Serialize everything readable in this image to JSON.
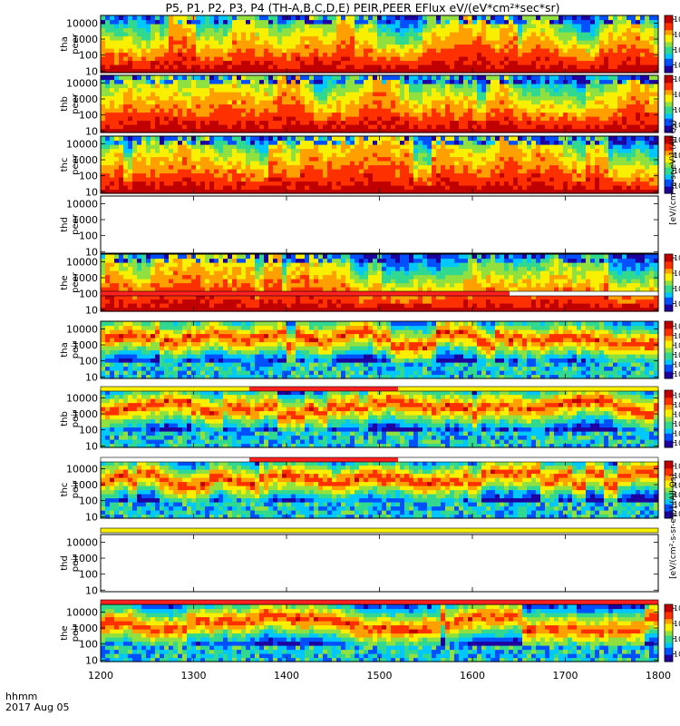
{
  "chart_data": {
    "type": "heatmap",
    "title": "P5, P1, P2, P3, P4 (TH-A,B,C,D,E) PEIR,PEER EFlux eV/(eV*cm²*sec*sr)",
    "xlabel": "hhmm",
    "xlabel2": "2017 Aug 05",
    "xlim": [
      1200,
      1800
    ],
    "xticks": [
      "1200",
      "1300",
      "1400",
      "1500",
      "1600",
      "1700",
      "1800"
    ],
    "yscale": "log",
    "ylim": [
      8,
      30000
    ],
    "yticks": [
      "10",
      "100",
      "1000",
      "10000"
    ],
    "colorbar_label_top": "[eV/(cm²-s-sr-eV)] (All Qs)",
    "colorbar_label_bottom": "[eV/(cm²-s-sr-eV)] (All Qs)",
    "colorscale": [
      "#1e00a0",
      "#0050ff",
      "#00c8ff",
      "#30d890",
      "#90e040",
      "#f8f000",
      "#ffa000",
      "#ff3000",
      "#c00000"
    ],
    "panels": [
      {
        "sc": "tha",
        "species": "peer",
        "ylabel1": "tha",
        "ylabel2": "peer",
        "has_data": true,
        "cbar_ticks": [
          "10²",
          "10⁴",
          "10⁶",
          "10⁸"
        ],
        "cbar_exps": [
          2,
          4,
          6,
          8
        ],
        "cbar_range": [
          1,
          8.5
        ]
      },
      {
        "sc": "thb",
        "species": "peer",
        "ylabel1": "thb",
        "ylabel2": "peer",
        "has_data": true,
        "cbar_ticks": [
          "10²",
          "10⁴",
          "10⁶",
          "10⁸"
        ],
        "cbar_exps": [
          2,
          4,
          6,
          8
        ],
        "cbar_range": [
          1,
          8.5
        ]
      },
      {
        "sc": "thc",
        "species": "peer",
        "ylabel1": "thc",
        "ylabel2": "peer",
        "has_data": true,
        "cbar_ticks": [
          "10²",
          "10⁴",
          "10⁶",
          "10⁸"
        ],
        "cbar_exps": [
          2,
          4,
          6,
          8
        ],
        "cbar_range": [
          1,
          8.5
        ]
      },
      {
        "sc": "thd",
        "species": "peer",
        "ylabel1": "thd",
        "ylabel2": "peer",
        "has_data": false,
        "cbar_ticks": [],
        "cbar_exps": [],
        "cbar_range": [
          1,
          8.5
        ]
      },
      {
        "sc": "the",
        "species": "peer",
        "ylabel1": "the",
        "ylabel2": "peer",
        "has_data": true,
        "cbar_ticks": [
          "10²",
          "10⁴",
          "10⁶",
          "10⁸"
        ],
        "cbar_exps": [
          2,
          4,
          6,
          8
        ],
        "cbar_range": [
          1,
          8.5
        ]
      },
      {
        "sc": "tha",
        "species": "peir",
        "ylabel1": "tha",
        "ylabel2": "peir",
        "has_data": true,
        "cbar_ticks": [
          "10²",
          "10³",
          "10⁴",
          "10⁵",
          "10⁶",
          "10⁷"
        ],
        "cbar_exps": [
          2,
          3,
          4,
          5,
          6,
          7
        ],
        "cbar_range": [
          1.5,
          7.5
        ]
      },
      {
        "sc": "thb",
        "species": "peir",
        "ylabel1": "thb",
        "ylabel2": "peir",
        "has_data": true,
        "cbar_ticks": [
          "10²",
          "10³",
          "10⁴",
          "10⁵",
          "10⁶",
          "10⁷"
        ],
        "cbar_exps": [
          2,
          3,
          4,
          5,
          6,
          7
        ],
        "cbar_range": [
          1.5,
          7.5
        ]
      },
      {
        "sc": "thc",
        "species": "peir",
        "ylabel1": "thc",
        "ylabel2": "peir",
        "has_data": true,
        "cbar_ticks": [
          "10²",
          "10³",
          "10⁴",
          "10⁵",
          "10⁶",
          "10⁷"
        ],
        "cbar_exps": [
          2,
          3,
          4,
          5,
          6,
          7
        ],
        "cbar_range": [
          1.5,
          7.5
        ]
      },
      {
        "sc": "thd",
        "species": "peir",
        "ylabel1": "thd",
        "ylabel2": "peir",
        "has_data": false,
        "cbar_ticks": [],
        "cbar_exps": [],
        "cbar_range": [
          1.5,
          7.5
        ]
      },
      {
        "sc": "the",
        "species": "peir",
        "ylabel1": "the",
        "ylabel2": "peir",
        "has_data": true,
        "cbar_ticks": [
          "10²",
          "10⁴",
          "10⁶",
          "10⁸"
        ],
        "cbar_exps": [
          2,
          4,
          6,
          8
        ],
        "cbar_range": [
          1,
          8.5
        ]
      }
    ],
    "mode_bars": [
      {
        "segments": [
          {
            "x0": 1200,
            "x1": 1640,
            "color": "#ff2020"
          },
          {
            "x0": 1640,
            "x1": 1800,
            "color": "#ffffff"
          }
        ]
      },
      {
        "segments": [
          {
            "x0": 1200,
            "x1": 1360,
            "color": "#f8f000"
          },
          {
            "x0": 1360,
            "x1": 1520,
            "color": "#ff2020"
          },
          {
            "x0": 1520,
            "x1": 1800,
            "color": "#f8f000"
          }
        ]
      },
      {
        "segments": [
          {
            "x0": 1200,
            "x1": 1360,
            "color": "#ffffff"
          },
          {
            "x0": 1360,
            "x1": 1520,
            "color": "#ff2020"
          },
          {
            "x0": 1520,
            "x1": 1800,
            "color": "#ffffff"
          }
        ]
      },
      {
        "segments": [
          {
            "x0": 1200,
            "x1": 1800,
            "color": "#f8f000"
          }
        ]
      },
      {
        "segments": [
          {
            "x0": 1200,
            "x1": 1800,
            "color": "#ff2020"
          }
        ]
      }
    ]
  }
}
